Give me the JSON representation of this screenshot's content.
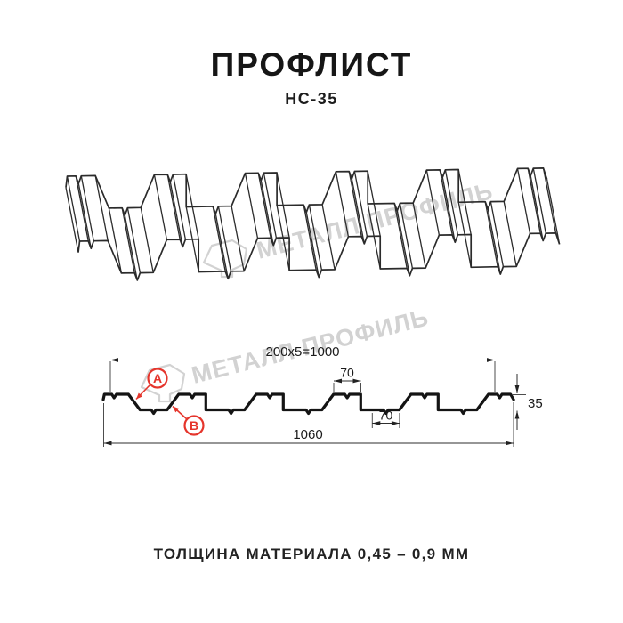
{
  "header": {
    "title": "ПРОФЛИСТ",
    "subtitle": "НС-35"
  },
  "footer": {
    "caption": "ТОЛЩИНА МАТЕРИАЛА 0,45 – 0,9 ММ"
  },
  "drawing": {
    "watermark": {
      "text": "МЕТАЛЛ ПРОФИЛЬ"
    },
    "dimensions": {
      "working_width": "200x5=1000",
      "crest_width": "70",
      "valley_width": "70",
      "profile_height": "35",
      "overall_width": "1060"
    },
    "callouts": {
      "a": "А",
      "b": "В"
    }
  },
  "profile": {
    "name": "НС-35",
    "pitch_mm": 200,
    "repeats": 5,
    "height_mm": 35,
    "crest_mm": 70,
    "valley_mm": 70,
    "overall_mm": 1060,
    "working_mm": 1000
  },
  "colors": {
    "line_3d": "#2b2b2b",
    "line_section": "#141414",
    "dim_line": "#2e2e2e",
    "accent_red": "#e5352c",
    "watermark": "#d2d2d2"
  }
}
